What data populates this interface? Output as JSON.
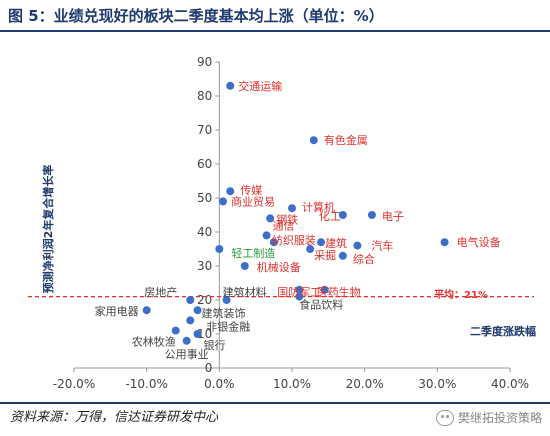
{
  "header": {
    "title": "图 5：业绩兑现好的板块二季度基本均上涨（单位：%）"
  },
  "footer": {
    "source": "资料来源：万得，信达证券研发中心",
    "watermark": "樊继拓投资策略"
  },
  "chart_data": {
    "type": "scatter",
    "xlabel": "二季度涨跌幅",
    "ylabel": "预测净利润2年复合增长率",
    "xlim": [
      -20,
      40
    ],
    "ylim": [
      0,
      90
    ],
    "x_ticks": [
      "-20.0%",
      "-10.0%",
      "0.0%",
      "10.0%",
      "20.0%",
      "30.0%",
      "40.0%"
    ],
    "y_ticks": [
      "0",
      "10",
      "20",
      "30",
      "40",
      "50",
      "60",
      "70",
      "80",
      "90"
    ],
    "average_line": {
      "y": 21,
      "label": "平均：21%",
      "color": "#e0312d"
    },
    "point_color": "#3d6ec9",
    "label_color_above": "#e0312d",
    "label_color_below": "#444444",
    "label_color_mid": "#2a9d3c",
    "points": [
      {
        "label": "交通运输",
        "x": 1.5,
        "y": 83
      },
      {
        "label": "有色金属",
        "x": 13,
        "y": 67
      },
      {
        "label": "传媒",
        "x": 1.5,
        "y": 52
      },
      {
        "label": "商业贸易",
        "x": 0.5,
        "y": 49
      },
      {
        "label": "计算机",
        "x": 10,
        "y": 47
      },
      {
        "label": "化工",
        "x": 17,
        "y": 45
      },
      {
        "label": "电子",
        "x": 21,
        "y": 45
      },
      {
        "label": "钢铁",
        "x": 7,
        "y": 44
      },
      {
        "label": "通信",
        "x": 6.5,
        "y": 39
      },
      {
        "label": "纺织服装",
        "x": 7.5,
        "y": 37
      },
      {
        "label": "建筑",
        "x": 14,
        "y": 37
      },
      {
        "label": "汽车",
        "x": 19,
        "y": 36
      },
      {
        "label": "电气设备",
        "x": 31,
        "y": 37
      },
      {
        "label": "轻工制造",
        "x": 0,
        "y": 35
      },
      {
        "label": "采掘",
        "x": 12.5,
        "y": 35
      },
      {
        "label": "综合",
        "x": 17,
        "y": 33
      },
      {
        "label": "机械设备",
        "x": 3.5,
        "y": 30
      },
      {
        "label": "国防军工",
        "x": 11,
        "y": 23
      },
      {
        "label": "医药生物",
        "x": 14.5,
        "y": 23
      },
      {
        "label": "房地产",
        "x": -4,
        "y": 20
      },
      {
        "label": "建筑材料",
        "x": 1,
        "y": 20
      },
      {
        "label": "食品饮料",
        "x": 11,
        "y": 21
      },
      {
        "label": "家用电器",
        "x": -10,
        "y": 17
      },
      {
        "label": "建筑装饰",
        "x": -3,
        "y": 17
      },
      {
        "label": "非银金融",
        "x": -4,
        "y": 14
      },
      {
        "label": "农林牧渔",
        "x": -6,
        "y": 11
      },
      {
        "label": "银行",
        "x": -3,
        "y": 10
      },
      {
        "label": "公用事业",
        "x": -4.5,
        "y": 8
      }
    ]
  }
}
